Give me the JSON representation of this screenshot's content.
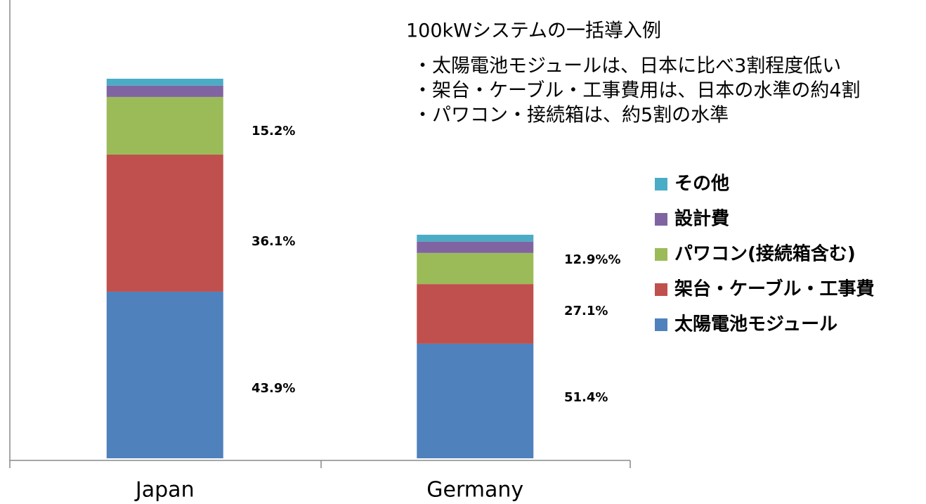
{
  "chart_data": {
    "type": "stacked_bar",
    "categories": [
      "Japan",
      "Germany"
    ],
    "series": [
      {
        "name": "太陽電池モジュール",
        "color": "#4f81bd",
        "values": [
          43.9,
          30.2
        ]
      },
      {
        "name": "架台・ケーブル・工事費",
        "color": "#c0504d",
        "values": [
          36.1,
          15.7
        ]
      },
      {
        "name": "パワコン(接続箱含む)",
        "color": "#9bbb59",
        "values": [
          15.2,
          8.2
        ]
      },
      {
        "name": "設計費",
        "color": "#8064a2",
        "values": [
          3.0,
          3.0
        ]
      },
      {
        "name": "その他",
        "color": "#4bacc6",
        "values": [
          1.8,
          1.8
        ]
      }
    ],
    "ylim": [
      0,
      100
    ],
    "annotations": [
      "15.2%",
      "36.1%",
      "43.9%",
      "12.9%%",
      "27.1%",
      "51.4%"
    ],
    "note_title": "100kWシステムの一括導入例",
    "notes": [
      "・太陽電池モジュールは、日本に比べ3割程度低い",
      "・架台・ケーブル・工事費用は、日本の水準の約4割",
      "・パワコン・接続箱は、約5割の水準"
    ]
  }
}
